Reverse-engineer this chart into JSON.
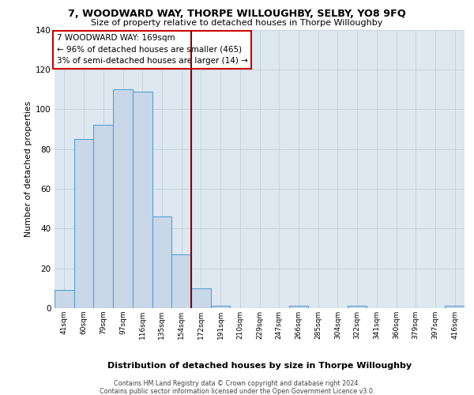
{
  "title": "7, WOODWARD WAY, THORPE WILLOUGHBY, SELBY, YO8 9FQ",
  "subtitle": "Size of property relative to detached houses in Thorpe Willoughby",
  "xlabel": "Distribution of detached houses by size in Thorpe Willoughby",
  "ylabel": "Number of detached properties",
  "bin_labels": [
    "41sqm",
    "60sqm",
    "79sqm",
    "97sqm",
    "116sqm",
    "135sqm",
    "154sqm",
    "172sqm",
    "191sqm",
    "210sqm",
    "229sqm",
    "247sqm",
    "266sqm",
    "285sqm",
    "304sqm",
    "322sqm",
    "341sqm",
    "360sqm",
    "379sqm",
    "397sqm",
    "416sqm"
  ],
  "bar_heights": [
    9,
    85,
    92,
    110,
    109,
    46,
    27,
    10,
    1,
    0,
    0,
    0,
    1,
    0,
    0,
    1,
    0,
    0,
    0,
    0,
    1
  ],
  "bar_color": "#c8d8e8",
  "bar_edge_color": "#5a9fd4",
  "vline_color": "#8b0000",
  "annotation_text": "7 WOODWARD WAY: 169sqm\n← 96% of detached houses are smaller (465)\n3% of semi-detached houses are larger (14) →",
  "annotation_box_color": "#ffffff",
  "annotation_box_edge_color": "#cc0000",
  "ylim": [
    0,
    140
  ],
  "yticks": [
    0,
    20,
    40,
    60,
    80,
    100,
    120,
    140
  ],
  "grid_color": "#c8d4de",
  "background_color": "#dde8f0",
  "footer_line1": "Contains HM Land Registry data © Crown copyright and database right 2024.",
  "footer_line2": "Contains public sector information licensed under the Open Government Licence v3.0."
}
